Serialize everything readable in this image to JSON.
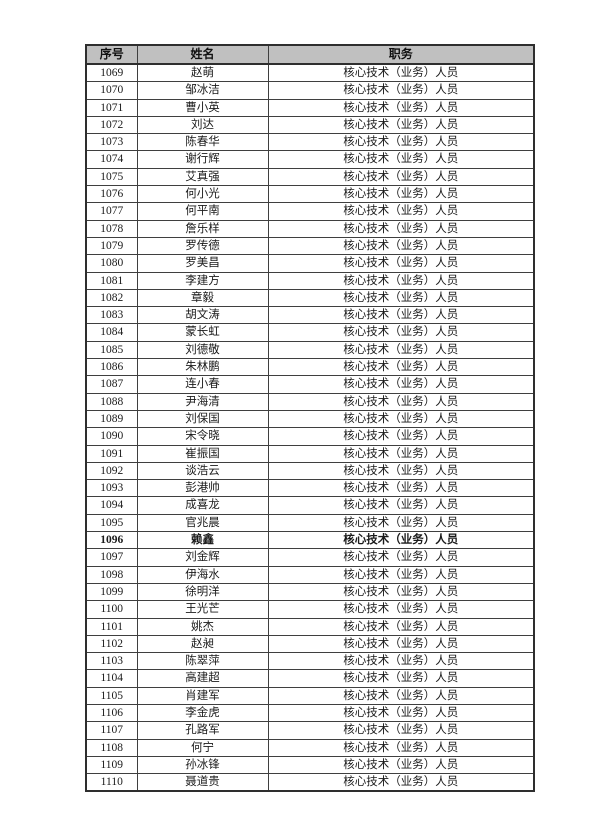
{
  "page": {
    "background": "#ffffff"
  },
  "table": {
    "columns": [
      "序号",
      "姓名",
      "职务"
    ],
    "header_bg": "#c0c0c0",
    "inner_border_color": "#3f3f3f",
    "outer_border_color": "#2e2e2e",
    "text_color": "#1a1a1a",
    "rows": [
      {
        "index": "1069",
        "name": "赵萌",
        "role": "核心技术（业务）人员"
      },
      {
        "index": "1070",
        "name": "邹冰洁",
        "role": "核心技术（业务）人员"
      },
      {
        "index": "1071",
        "name": "曹小英",
        "role": "核心技术（业务）人员"
      },
      {
        "index": "1072",
        "name": "刘达",
        "role": "核心技术（业务）人员"
      },
      {
        "index": "1073",
        "name": "陈春华",
        "role": "核心技术（业务）人员"
      },
      {
        "index": "1074",
        "name": "谢行辉",
        "role": "核心技术（业务）人员"
      },
      {
        "index": "1075",
        "name": "艾真强",
        "role": "核心技术（业务）人员"
      },
      {
        "index": "1076",
        "name": "何小光",
        "role": "核心技术（业务）人员"
      },
      {
        "index": "1077",
        "name": "何平南",
        "role": "核心技术（业务）人员"
      },
      {
        "index": "1078",
        "name": "詹乐样",
        "role": "核心技术（业务）人员"
      },
      {
        "index": "1079",
        "name": "罗传德",
        "role": "核心技术（业务）人员"
      },
      {
        "index": "1080",
        "name": "罗美昌",
        "role": "核心技术（业务）人员"
      },
      {
        "index": "1081",
        "name": "李建方",
        "role": "核心技术（业务）人员"
      },
      {
        "index": "1082",
        "name": "章毅",
        "role": "核心技术（业务）人员"
      },
      {
        "index": "1083",
        "name": "胡文涛",
        "role": "核心技术（业务）人员"
      },
      {
        "index": "1084",
        "name": "蒙长虹",
        "role": "核心技术（业务）人员"
      },
      {
        "index": "1085",
        "name": "刘德敬",
        "role": "核心技术（业务）人员"
      },
      {
        "index": "1086",
        "name": "朱林鹏",
        "role": "核心技术（业务）人员"
      },
      {
        "index": "1087",
        "name": "连小春",
        "role": "核心技术（业务）人员"
      },
      {
        "index": "1088",
        "name": "尹海清",
        "role": "核心技术（业务）人员"
      },
      {
        "index": "1089",
        "name": "刘保国",
        "role": "核心技术（业务）人员"
      },
      {
        "index": "1090",
        "name": "宋令晓",
        "role": "核心技术（业务）人员"
      },
      {
        "index": "1091",
        "name": "崔振国",
        "role": "核心技术（业务）人员"
      },
      {
        "index": "1092",
        "name": "谈浩云",
        "role": "核心技术（业务）人员"
      },
      {
        "index": "1093",
        "name": "彭港帅",
        "role": "核心技术（业务）人员"
      },
      {
        "index": "1094",
        "name": "成喜龙",
        "role": "核心技术（业务）人员"
      },
      {
        "index": "1095",
        "name": "官兆晨",
        "role": "核心技术（业务）人员"
      },
      {
        "index": "1096",
        "name": "赖鑫",
        "role": "核心技术（业务）人员",
        "emphasis": true
      },
      {
        "index": "1097",
        "name": "刘金辉",
        "role": "核心技术（业务）人员"
      },
      {
        "index": "1098",
        "name": "伊海水",
        "role": "核心技术（业务）人员"
      },
      {
        "index": "1099",
        "name": "徐明洋",
        "role": "核心技术（业务）人员"
      },
      {
        "index": "1100",
        "name": "王光芒",
        "role": "核心技术（业务）人员"
      },
      {
        "index": "1101",
        "name": "姚杰",
        "role": "核心技术（业务）人员"
      },
      {
        "index": "1102",
        "name": "赵昶",
        "role": "核心技术（业务）人员"
      },
      {
        "index": "1103",
        "name": "陈翠萍",
        "role": "核心技术（业务）人员"
      },
      {
        "index": "1104",
        "name": "高建超",
        "role": "核心技术（业务）人员"
      },
      {
        "index": "1105",
        "name": "肖建军",
        "role": "核心技术（业务）人员"
      },
      {
        "index": "1106",
        "name": "李金虎",
        "role": "核心技术（业务）人员"
      },
      {
        "index": "1107",
        "name": "孔路军",
        "role": "核心技术（业务）人员"
      },
      {
        "index": "1108",
        "name": "何宁",
        "role": "核心技术（业务）人员"
      },
      {
        "index": "1109",
        "name": "孙冰锋",
        "role": "核心技术（业务）人员"
      },
      {
        "index": "1110",
        "name": "聂道贵",
        "role": "核心技术（业务）人员"
      }
    ]
  }
}
